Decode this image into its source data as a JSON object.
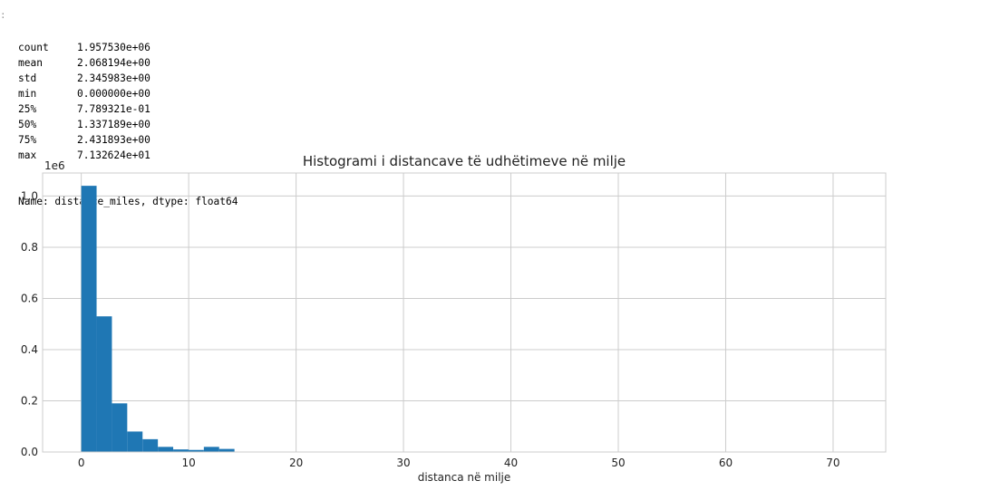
{
  "cell": {
    "prompt_marker": ":",
    "stats": [
      {
        "key": "count",
        "value": "1.957530e+06"
      },
      {
        "key": "mean",
        "value": "2.068194e+00"
      },
      {
        "key": "std",
        "value": "2.345983e+00"
      },
      {
        "key": "min",
        "value": "0.000000e+00"
      },
      {
        "key": "25%",
        "value": "7.789321e-01"
      },
      {
        "key": "50%",
        "value": "1.337189e+00"
      },
      {
        "key": "75%",
        "value": "2.431893e+00"
      },
      {
        "key": "max",
        "value": "7.132624e+01"
      }
    ],
    "footer": "Name: distance_miles, dtype: float64"
  },
  "chart_data": {
    "type": "bar",
    "title": "Histogrami i distancave të udhëtimeve në milje",
    "xlabel": "distanca në milje",
    "ylabel": "",
    "y_offset_label": "1e6",
    "xlim": [
      -3.6,
      74.9
    ],
    "ylim": [
      0,
      1.09
    ],
    "xticks": [
      0,
      10,
      20,
      30,
      40,
      50,
      60,
      70
    ],
    "xtick_labels": [
      "0",
      "10",
      "20",
      "30",
      "40",
      "50",
      "60",
      "70"
    ],
    "yticks": [
      0.0,
      0.2,
      0.4,
      0.6,
      0.8,
      1.0
    ],
    "ytick_labels": [
      "0.0",
      "0.2",
      "0.4",
      "0.6",
      "0.8",
      "1.0"
    ],
    "grid": true,
    "bar_color": "#1f77b4",
    "bin_width": 1.426,
    "bin_starts": [
      0.0,
      1.426,
      2.853,
      4.279,
      5.706,
      7.132,
      8.559,
      9.985,
      11.412,
      12.838
    ],
    "values": [
      1.04,
      0.53,
      0.19,
      0.08,
      0.05,
      0.02,
      0.01,
      0.008,
      0.02,
      0.012
    ]
  }
}
